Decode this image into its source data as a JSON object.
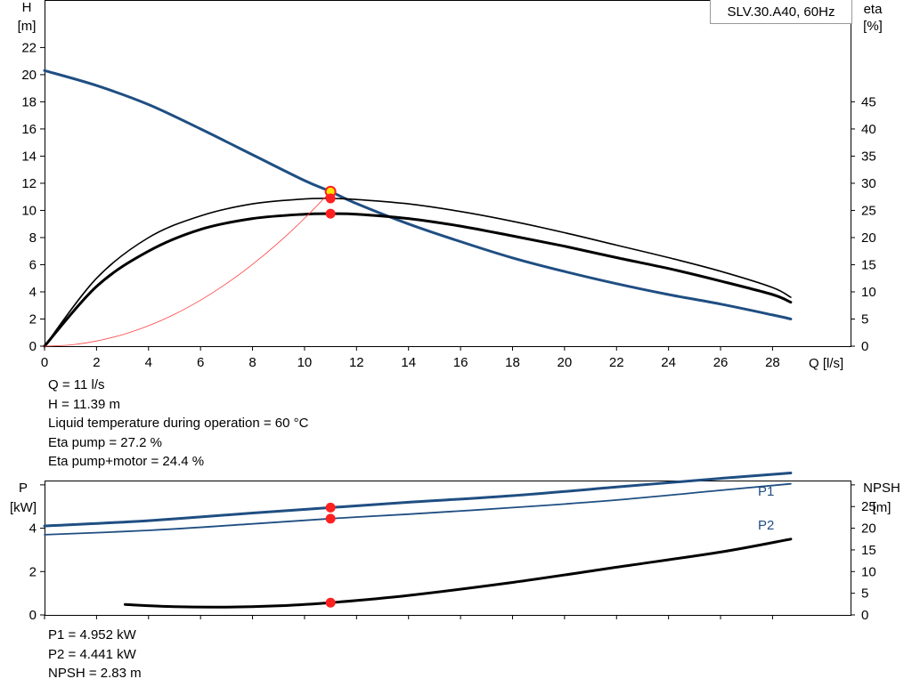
{
  "model": "SLV.30.A40, 60Hz",
  "info_top": [
    "Q = 11 l/s",
    "H = 11.39 m",
    "Liquid temperature during operation = 60 °C",
    "Eta pump = 27.2 %",
    "Eta pump+motor = 24.4 %"
  ],
  "info_bottom": [
    "P1 = 4.952 kW",
    "P2 = 4.441 kW",
    "NPSH = 2.83 m"
  ],
  "colors": {
    "head": "#1f4e82",
    "power": "#1f4e82",
    "eta": "#000000",
    "npsh": "#000000",
    "system": "#ff4040",
    "duty_point": "#ff2020",
    "duty_fill_yellow": "#ffe600"
  },
  "chart_data": [
    {
      "type": "line",
      "id": "head-efficiency",
      "xlabel": "Q [l/s]",
      "ylabel_left": "H",
      "ylabel_left_unit": "[m]",
      "ylabel_right": "eta",
      "ylabel_right_unit": "[%]",
      "xlim": [
        0,
        31
      ],
      "ylim_left": [
        0,
        25.5
      ],
      "ylim_right": [
        0,
        63.75
      ],
      "x_ticks": [
        0,
        2,
        4,
        6,
        8,
        10,
        12,
        14,
        16,
        18,
        20,
        22,
        24,
        26,
        28
      ],
      "y_left_ticks": [
        0,
        2,
        4,
        6,
        8,
        10,
        12,
        14,
        16,
        18,
        20,
        22
      ],
      "y_right_ticks": [
        0,
        5,
        10,
        15,
        20,
        25,
        30,
        35,
        40,
        45
      ],
      "grid": false,
      "series": [
        {
          "id": "head",
          "axis": "left",
          "x": [
            0,
            2,
            4,
            6,
            8,
            10,
            11,
            12,
            14,
            16,
            18,
            20,
            22,
            24,
            26,
            28,
            28.7
          ],
          "y": [
            20.3,
            19.2,
            17.8,
            16.0,
            14.1,
            12.2,
            11.39,
            10.5,
            9.0,
            7.7,
            6.5,
            5.5,
            4.6,
            3.8,
            3.1,
            2.3,
            2.0
          ]
        },
        {
          "id": "eta-pump",
          "axis": "right",
          "x": [
            0,
            2,
            4,
            6,
            8,
            10,
            11,
            12,
            14,
            16,
            18,
            20,
            22,
            24,
            26,
            28,
            28.7
          ],
          "y": [
            0,
            12.5,
            20.0,
            24.0,
            26.2,
            27.1,
            27.2,
            27.0,
            26.2,
            24.8,
            23.0,
            20.9,
            18.6,
            16.3,
            13.8,
            10.8,
            9.0
          ]
        },
        {
          "id": "eta-pump-motor",
          "axis": "right",
          "x": [
            0,
            2,
            4,
            6,
            8,
            10,
            11,
            12,
            14,
            16,
            18,
            20,
            22,
            24,
            26,
            28,
            28.7
          ],
          "y": [
            0,
            11.0,
            17.5,
            21.5,
            23.5,
            24.3,
            24.4,
            24.3,
            23.5,
            22.1,
            20.3,
            18.4,
            16.3,
            14.3,
            12.0,
            9.5,
            8.1
          ]
        },
        {
          "id": "system-curve",
          "axis": "left",
          "x": [
            0,
            1,
            2,
            3,
            4,
            5,
            6,
            7,
            8,
            9,
            10,
            11
          ],
          "y": [
            0,
            0.094,
            0.377,
            0.847,
            1.506,
            2.353,
            3.389,
            4.612,
            6.024,
            7.624,
            9.413,
            11.39
          ]
        }
      ],
      "duty_points": [
        {
          "axis": "left",
          "x": 11,
          "y": 11.39,
          "style": "yellow"
        },
        {
          "axis": "right",
          "x": 11,
          "y": 27.2,
          "style": "red"
        },
        {
          "axis": "right",
          "x": 11,
          "y": 24.4,
          "style": "red"
        }
      ]
    },
    {
      "type": "line",
      "id": "power-npsh",
      "ylabel_left": "P",
      "ylabel_left_unit": "[kW]",
      "ylabel_right": "NPSH",
      "ylabel_right_unit": "[m]",
      "xlim": [
        0,
        31
      ],
      "ylim_left": [
        0,
        6.2
      ],
      "ylim_right": [
        0,
        31
      ],
      "x_ticks": [
        0,
        2,
        4,
        6,
        8,
        10,
        12,
        14,
        16,
        18,
        20,
        22,
        24,
        26,
        28
      ],
      "y_left_ticks": [
        0,
        2,
        4
      ],
      "y_right_ticks": [
        0,
        5,
        10,
        15,
        20,
        25
      ],
      "grid": false,
      "series": [
        {
          "id": "P1",
          "name": "P1",
          "axis": "left",
          "x": [
            0,
            4,
            8,
            11,
            14,
            18,
            22,
            26,
            28.7
          ],
          "y": [
            4.1,
            4.35,
            4.7,
            4.952,
            5.2,
            5.5,
            5.9,
            6.3,
            6.55
          ]
        },
        {
          "id": "P2",
          "name": "P2",
          "axis": "left",
          "x": [
            0,
            4,
            8,
            11,
            14,
            18,
            22,
            26,
            28.7
          ],
          "y": [
            3.7,
            3.9,
            4.2,
            4.441,
            4.65,
            4.95,
            5.3,
            5.75,
            6.05
          ]
        },
        {
          "id": "NPSH",
          "axis": "right",
          "x": [
            3.1,
            5,
            7,
            9,
            11,
            14,
            18,
            22,
            26,
            28.7
          ],
          "y": [
            2.4,
            1.9,
            1.8,
            2.1,
            2.83,
            4.5,
            7.5,
            11.0,
            14.5,
            17.5
          ]
        }
      ],
      "duty_points": [
        {
          "axis": "left",
          "x": 11,
          "y": 4.952,
          "style": "red"
        },
        {
          "axis": "left",
          "x": 11,
          "y": 4.441,
          "style": "red"
        },
        {
          "axis": "right",
          "x": 11,
          "y": 2.83,
          "style": "red"
        }
      ]
    }
  ]
}
